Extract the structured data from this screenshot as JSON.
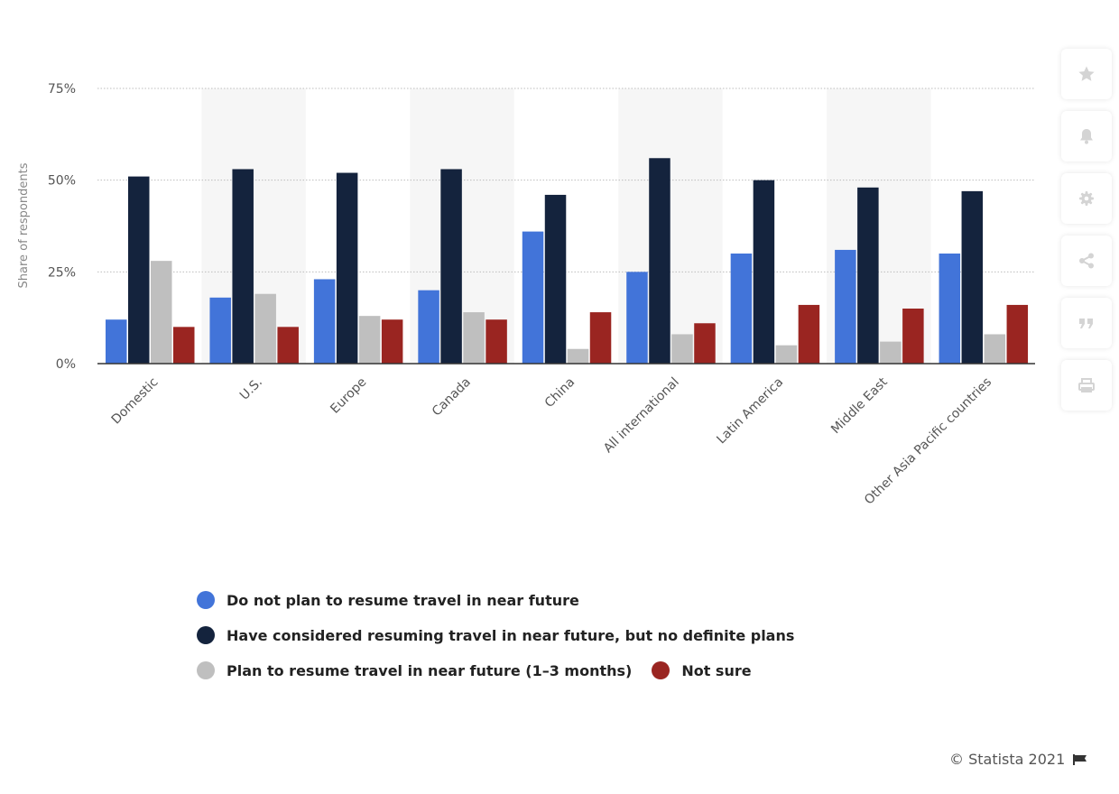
{
  "chart_data": {
    "type": "bar",
    "categories": [
      "Domestic",
      "U.S.",
      "Europe",
      "Canada",
      "China",
      "All international",
      "Latin America",
      "Middle East",
      "Other Asia Pacific countries"
    ],
    "series": [
      {
        "name": "Do not plan to resume travel in near future",
        "color": "#4274d9",
        "values": [
          12,
          18,
          23,
          20,
          36,
          25,
          30,
          31,
          30
        ]
      },
      {
        "name": "Have considered resuming travel in near future, but no definite plans",
        "color": "#14233d",
        "values": [
          51,
          53,
          52,
          53,
          46,
          56,
          50,
          48,
          47
        ]
      },
      {
        "name": "Plan to resume travel in near future (1-3 months)",
        "color": "#bfbfbf",
        "values": [
          28,
          19,
          13,
          14,
          4,
          8,
          5,
          6,
          8
        ]
      },
      {
        "name": "Not sure",
        "color": "#9a2521",
        "values": [
          10,
          10,
          12,
          12,
          14,
          11,
          16,
          15,
          16
        ]
      }
    ],
    "ylabel": "Share of respondents",
    "xlabel": "",
    "ylim": [
      0,
      75
    ],
    "yticks": [
      0,
      25,
      50,
      75
    ],
    "ytick_labels": [
      "0%",
      "25%",
      "50%",
      "75%"
    ],
    "grid": true,
    "legend_position": "bottom"
  },
  "legend_rows": [
    [
      {
        "label": "Do not plan to resume travel in near future",
        "color": "#4274d9"
      }
    ],
    [
      {
        "label": "Have considered resuming travel in near future, but no definite plans",
        "color": "#14233d"
      }
    ],
    [
      {
        "label": "Plan to resume travel in near future (1–3 months)",
        "color": "#bfbfbf"
      },
      {
        "label": "Not sure",
        "color": "#9a2521"
      }
    ]
  ],
  "sidebar": {
    "buttons": [
      {
        "name": "star-button",
        "icon": "star-icon"
      },
      {
        "name": "notification-button",
        "icon": "bell-icon"
      },
      {
        "name": "settings-button",
        "icon": "gear-icon"
      },
      {
        "name": "share-button",
        "icon": "share-icon"
      },
      {
        "name": "cite-button",
        "icon": "quote-icon"
      },
      {
        "name": "print-button",
        "icon": "print-icon"
      }
    ]
  },
  "credit": {
    "text": "© Statista 2021"
  }
}
